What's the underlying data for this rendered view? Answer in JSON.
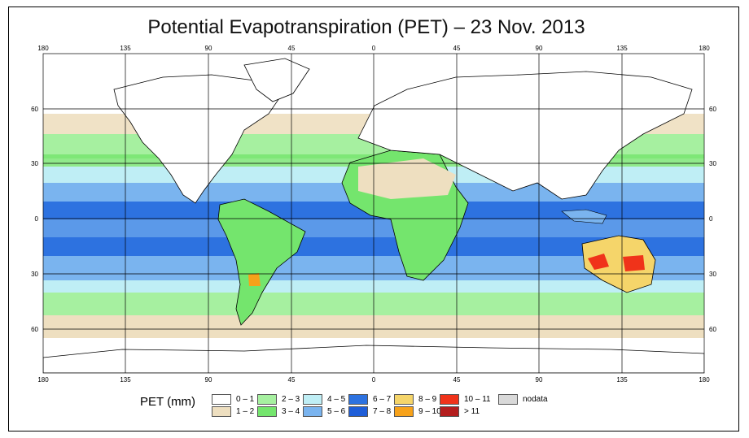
{
  "title": "Potential Evapotranspiration (PET) – 23 Nov. 2013",
  "axes": {
    "lon_ticks": [
      "180",
      "135",
      "90",
      "45",
      "0",
      "45",
      "90",
      "135",
      "180"
    ],
    "lat_ticks": [
      "60",
      "30",
      "0",
      "30",
      "60"
    ]
  },
  "colors": {
    "ocean_0_1": "#ffffff",
    "c1_2": "#eedfc0",
    "c2_3": "#a6f0a0",
    "c3_4": "#74e56d",
    "c4_5": "#bfeef5",
    "c5_6": "#7ab4ef",
    "c6_7": "#2d72e0",
    "c7_8": "#1f5ed8",
    "c8_9": "#f5d56a",
    "c9_10": "#f7a21a",
    "c10_11": "#f0331a",
    "c11p": "#b41e1e",
    "nodata": "#d9d9d9"
  },
  "legend": {
    "title": "PET (mm)",
    "items": [
      {
        "label": "0 – 1",
        "color": "#ffffff"
      },
      {
        "label": "1 – 2",
        "color": "#eedfc0"
      },
      {
        "label": "2 – 3",
        "color": "#a6f0a0"
      },
      {
        "label": "3 – 4",
        "color": "#74e56d"
      },
      {
        "label": "4 – 5",
        "color": "#bfeef5"
      },
      {
        "label": "5 – 6",
        "color": "#7ab4ef"
      },
      {
        "label": "6 – 7",
        "color": "#2d72e0"
      },
      {
        "label": "7 – 8",
        "color": "#1f5ed8"
      },
      {
        "label": "8 – 9",
        "color": "#f5d56a"
      },
      {
        "label": "9 – 10",
        "color": "#f7a21a"
      },
      {
        "label": "10 – 11",
        "color": "#f0331a"
      },
      {
        "label": "> 11",
        "color": "#b41e1e"
      },
      {
        "label": "nodata",
        "color": "#d9d9d9"
      }
    ]
  }
}
